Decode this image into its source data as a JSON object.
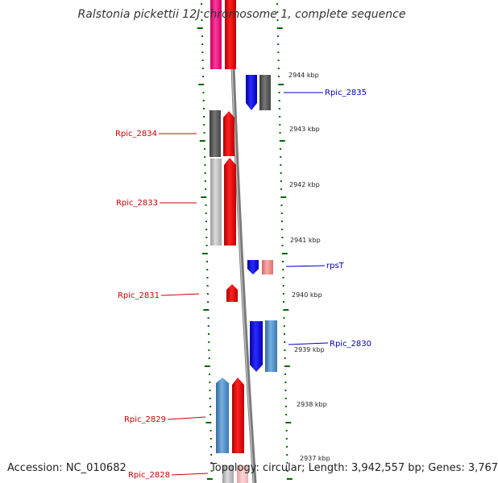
{
  "title": "Ralstonia pickettii 12J chromosome 1, complete sequence",
  "footer": {
    "accession": "Accession: NC_010682",
    "topology": "Topology: circular; Length: 3,942,557 bp; Genes: 3,767"
  },
  "colors": {
    "reverse_label": "#cc0000",
    "forward_label": "#0000bb",
    "tick": "#006600",
    "backbone": "#808080"
  },
  "scale": {
    "unit": "kbp",
    "ticks": [
      "2944 kbp",
      "2943 kbp",
      "2942 kbp",
      "2941 kbp",
      "2940 kbp",
      "2939 kbp",
      "2938 kbp",
      "2937 kbp"
    ]
  },
  "genes": {
    "reverse_labels": [
      "Rpic_2834",
      "Rpic_2833",
      "Rpic_2831",
      "Rpic_2829",
      "Rpic_2828"
    ],
    "forward_labels": [
      "Rpic_2835",
      "rpsT",
      "Rpic_2830"
    ]
  }
}
